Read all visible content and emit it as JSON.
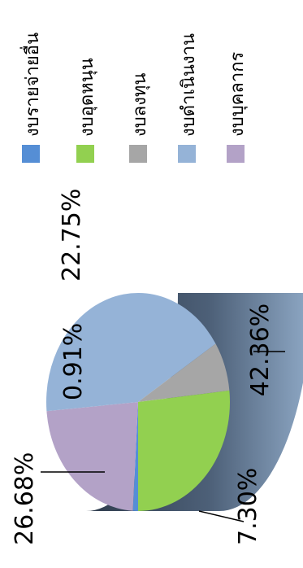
{
  "chart_data": {
    "type": "pie",
    "title": "",
    "labels": [
      "งบบุคลากร",
      "งบดำเนินงาน",
      "งบลงทุน",
      "งบอุดหนุน",
      "งบรายจ่ายอื่น"
    ],
    "values": [
      22.75,
      42.36,
      7.3,
      26.68,
      0.91
    ],
    "value_labels": [
      "22.75%",
      "42.36%",
      "7.30%",
      "26.68%",
      "0.91%"
    ],
    "colors": [
      "#b3a2c7",
      "#95b3d7",
      "#a6a6a6",
      "#92d050",
      "#558ed5"
    ],
    "legend_position": "right",
    "three_d": true,
    "rotated": "90deg-counterclockwise"
  }
}
